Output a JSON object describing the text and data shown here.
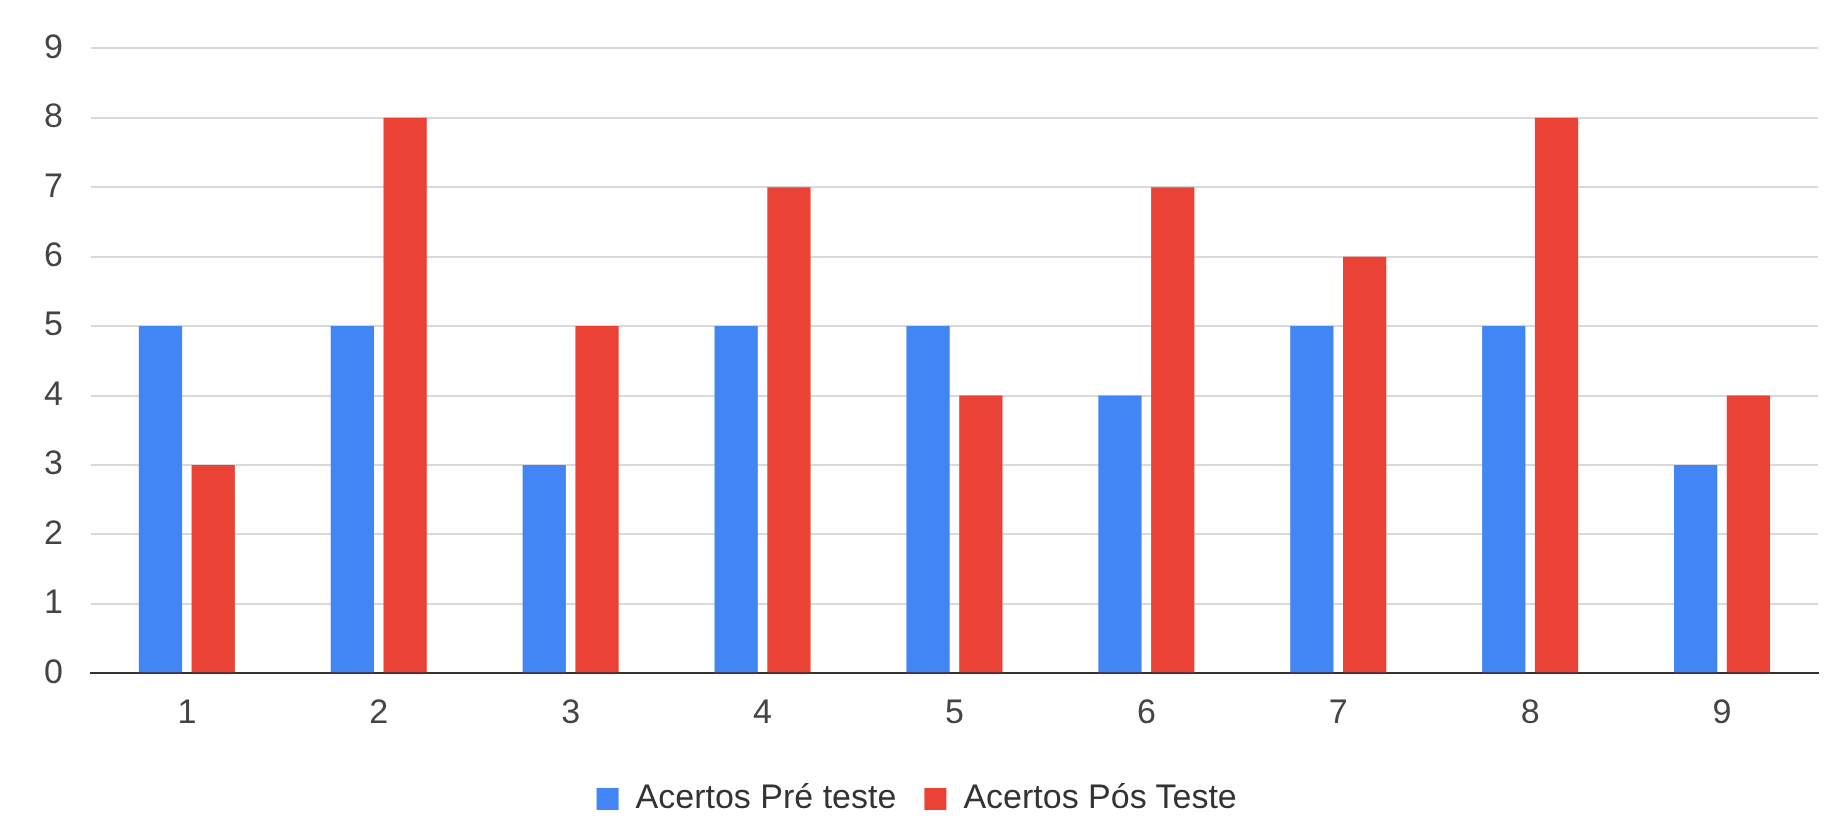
{
  "chart_data": {
    "type": "bar",
    "categories": [
      "1",
      "2",
      "3",
      "4",
      "5",
      "6",
      "7",
      "8",
      "9"
    ],
    "series": [
      {
        "name": "Acertos Pré teste",
        "color": "#4285f4",
        "values": [
          5,
          5,
          3,
          5,
          5,
          4,
          5,
          5,
          3
        ]
      },
      {
        "name": "Acertos Pós Teste",
        "color": "#ea4335",
        "values": [
          3,
          8,
          5,
          7,
          4,
          7,
          6,
          8,
          4
        ]
      }
    ],
    "ylim": [
      0,
      9
    ],
    "yticks": [
      0,
      1,
      2,
      3,
      4,
      5,
      6,
      7,
      8,
      9
    ],
    "grid": "y",
    "legend": "bottom"
  }
}
